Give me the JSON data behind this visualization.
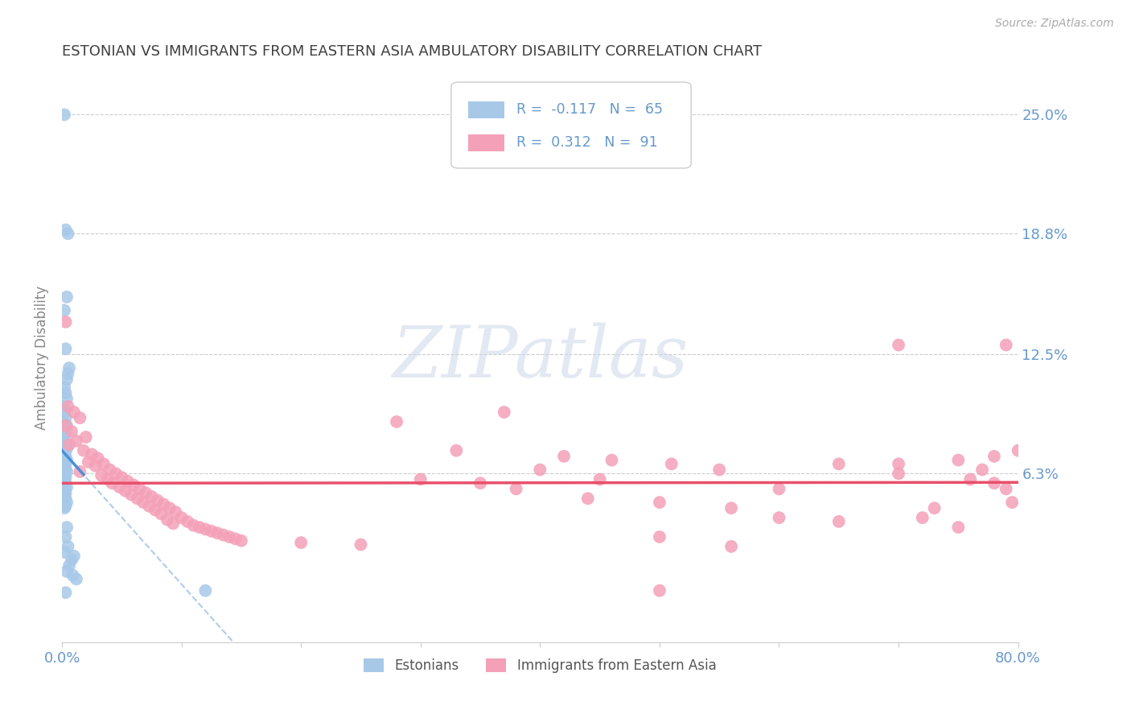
{
  "title": "ESTONIAN VS IMMIGRANTS FROM EASTERN ASIA AMBULATORY DISABILITY CORRELATION CHART",
  "source": "Source: ZipAtlas.com",
  "ylabel": "Ambulatory Disability",
  "ytick_labels": [
    "25.0%",
    "18.8%",
    "12.5%",
    "6.3%"
  ],
  "ytick_values": [
    0.25,
    0.188,
    0.125,
    0.063
  ],
  "xmin": 0.0,
  "xmax": 0.8,
  "ymin": -0.025,
  "ymax": 0.272,
  "estonian_color": "#a8c8e8",
  "immigrant_color": "#f4a0b8",
  "trendline_estonian_color": "#4a90d9",
  "trendline_immigrant_color": "#e8506a",
  "watermark_color": "#d0dce8",
  "background_color": "#ffffff",
  "grid_color": "#cccccc",
  "title_color": "#404040",
  "axis_label_color": "#6699cc",
  "right_tick_color": "#6699cc",
  "legend_R_est": "-0.117",
  "legend_N_est": "65",
  "legend_R_imm": "0.312",
  "legend_N_imm": "91",
  "estonian_points": [
    [
      0.002,
      0.25
    ],
    [
      0.003,
      0.19
    ],
    [
      0.005,
      0.188
    ],
    [
      0.004,
      0.155
    ],
    [
      0.002,
      0.148
    ],
    [
      0.003,
      0.128
    ],
    [
      0.006,
      0.118
    ],
    [
      0.005,
      0.115
    ],
    [
      0.004,
      0.112
    ],
    [
      0.002,
      0.108
    ],
    [
      0.003,
      0.105
    ],
    [
      0.004,
      0.102
    ],
    [
      0.001,
      0.098
    ],
    [
      0.002,
      0.095
    ],
    [
      0.003,
      0.092
    ],
    [
      0.001,
      0.09
    ],
    [
      0.004,
      0.088
    ],
    [
      0.002,
      0.086
    ],
    [
      0.003,
      0.084
    ],
    [
      0.001,
      0.082
    ],
    [
      0.002,
      0.08
    ],
    [
      0.003,
      0.078
    ],
    [
      0.004,
      0.076
    ],
    [
      0.002,
      0.074
    ],
    [
      0.001,
      0.073
    ],
    [
      0.003,
      0.072
    ],
    [
      0.002,
      0.071
    ],
    [
      0.004,
      0.07
    ],
    [
      0.002,
      0.069
    ],
    [
      0.003,
      0.068
    ],
    [
      0.001,
      0.067
    ],
    [
      0.002,
      0.066
    ],
    [
      0.003,
      0.065
    ],
    [
      0.004,
      0.064
    ],
    [
      0.001,
      0.063
    ],
    [
      0.002,
      0.062
    ],
    [
      0.003,
      0.061
    ],
    [
      0.001,
      0.06
    ],
    [
      0.002,
      0.059
    ],
    [
      0.003,
      0.058
    ],
    [
      0.001,
      0.057
    ],
    [
      0.004,
      0.056
    ],
    [
      0.002,
      0.055
    ],
    [
      0.001,
      0.054
    ],
    [
      0.003,
      0.053
    ],
    [
      0.002,
      0.052
    ],
    [
      0.001,
      0.051
    ],
    [
      0.003,
      0.05
    ],
    [
      0.002,
      0.049
    ],
    [
      0.004,
      0.048
    ],
    [
      0.001,
      0.047
    ],
    [
      0.003,
      0.046
    ],
    [
      0.002,
      0.045
    ],
    [
      0.004,
      0.035
    ],
    [
      0.003,
      0.03
    ],
    [
      0.005,
      0.025
    ],
    [
      0.002,
      0.022
    ],
    [
      0.01,
      0.02
    ],
    [
      0.008,
      0.018
    ],
    [
      0.006,
      0.015
    ],
    [
      0.004,
      0.012
    ],
    [
      0.009,
      0.01
    ],
    [
      0.012,
      0.008
    ],
    [
      0.12,
      0.002
    ],
    [
      0.003,
      0.001
    ]
  ],
  "immigrant_points": [
    [
      0.003,
      0.142
    ],
    [
      0.005,
      0.098
    ],
    [
      0.01,
      0.095
    ],
    [
      0.015,
      0.092
    ],
    [
      0.003,
      0.088
    ],
    [
      0.008,
      0.085
    ],
    [
      0.02,
      0.082
    ],
    [
      0.012,
      0.08
    ],
    [
      0.006,
      0.078
    ],
    [
      0.018,
      0.075
    ],
    [
      0.025,
      0.073
    ],
    [
      0.03,
      0.071
    ],
    [
      0.022,
      0.069
    ],
    [
      0.035,
      0.068
    ],
    [
      0.028,
      0.067
    ],
    [
      0.04,
      0.065
    ],
    [
      0.015,
      0.064
    ],
    [
      0.045,
      0.063
    ],
    [
      0.033,
      0.062
    ],
    [
      0.05,
      0.061
    ],
    [
      0.038,
      0.06
    ],
    [
      0.055,
      0.059
    ],
    [
      0.042,
      0.058
    ],
    [
      0.06,
      0.057
    ],
    [
      0.048,
      0.056
    ],
    [
      0.065,
      0.055
    ],
    [
      0.053,
      0.054
    ],
    [
      0.07,
      0.053
    ],
    [
      0.058,
      0.052
    ],
    [
      0.075,
      0.051
    ],
    [
      0.063,
      0.05
    ],
    [
      0.08,
      0.049
    ],
    [
      0.068,
      0.048
    ],
    [
      0.085,
      0.047
    ],
    [
      0.073,
      0.046
    ],
    [
      0.09,
      0.045
    ],
    [
      0.078,
      0.044
    ],
    [
      0.095,
      0.043
    ],
    [
      0.083,
      0.042
    ],
    [
      0.1,
      0.04
    ],
    [
      0.088,
      0.039
    ],
    [
      0.105,
      0.038
    ],
    [
      0.093,
      0.037
    ],
    [
      0.11,
      0.036
    ],
    [
      0.115,
      0.035
    ],
    [
      0.12,
      0.034
    ],
    [
      0.125,
      0.033
    ],
    [
      0.13,
      0.032
    ],
    [
      0.135,
      0.031
    ],
    [
      0.14,
      0.03
    ],
    [
      0.145,
      0.029
    ],
    [
      0.15,
      0.028
    ],
    [
      0.2,
      0.027
    ],
    [
      0.25,
      0.026
    ],
    [
      0.28,
      0.09
    ],
    [
      0.3,
      0.06
    ],
    [
      0.33,
      0.075
    ],
    [
      0.35,
      0.058
    ],
    [
      0.37,
      0.095
    ],
    [
      0.38,
      0.055
    ],
    [
      0.4,
      0.065
    ],
    [
      0.42,
      0.072
    ],
    [
      0.44,
      0.05
    ],
    [
      0.45,
      0.06
    ],
    [
      0.46,
      0.07
    ],
    [
      0.5,
      0.048
    ],
    [
      0.5,
      0.03
    ],
    [
      0.5,
      0.002
    ],
    [
      0.51,
      0.068
    ],
    [
      0.55,
      0.065
    ],
    [
      0.56,
      0.025
    ],
    [
      0.56,
      0.045
    ],
    [
      0.6,
      0.055
    ],
    [
      0.6,
      0.04
    ],
    [
      0.65,
      0.068
    ],
    [
      0.65,
      0.038
    ],
    [
      0.7,
      0.063
    ],
    [
      0.7,
      0.13
    ],
    [
      0.7,
      0.068
    ],
    [
      0.72,
      0.04
    ],
    [
      0.73,
      0.045
    ],
    [
      0.75,
      0.035
    ],
    [
      0.75,
      0.07
    ],
    [
      0.76,
      0.06
    ],
    [
      0.77,
      0.065
    ],
    [
      0.78,
      0.058
    ],
    [
      0.78,
      0.072
    ],
    [
      0.79,
      0.055
    ],
    [
      0.79,
      0.13
    ],
    [
      0.795,
      0.048
    ],
    [
      0.8,
      0.075
    ]
  ]
}
